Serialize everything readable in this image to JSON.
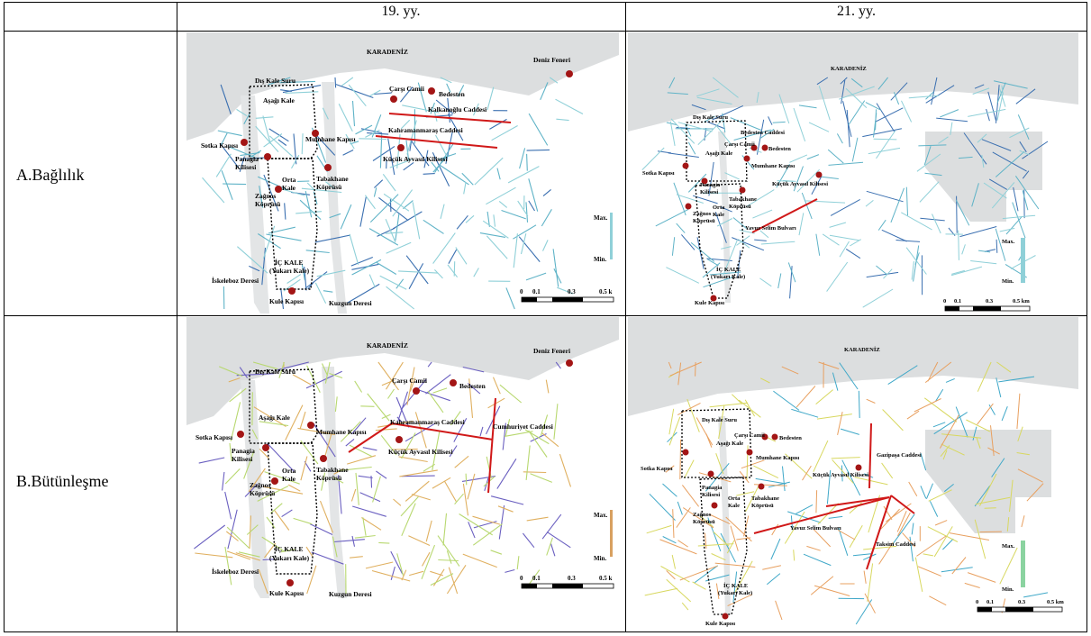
{
  "table": {
    "col_19": "19. yy.",
    "col_21": "21. yy.",
    "row_a": "A.Bağlılık",
    "row_b": "B.Bütünleşme"
  },
  "labels": {
    "karadeniz": "KARADENİZ",
    "deniz_feneri": "Deniz Feneri",
    "dis_kale_suru": "Dış Kale Suru",
    "carsi_camii": "Çarşı Camii",
    "bedesten": "Bedesten",
    "bedesten_caddesi": "Bedesten Caddesi",
    "kalkanoglu_caddesi": "Kalkanoğlu Caddesi",
    "kahramanmaras_caddesi": "Kahramanmaraş Caddesi",
    "cumhuriyet_caddesi": "Cumhuriyet Caddesi",
    "asagi_kale": "Aşağı Kale",
    "mumhane_kapisi": "Mumhane Kapısı",
    "sotka_kapisi": "Sotka Kapısı",
    "panagia_kilisesi_1": "Panagia",
    "panagia_kilisesi_2": "Kilisesi",
    "kucuk_ayvasil": "Küçük Ayvasıl Kilisesi",
    "tabakhane_1": "Tabakhane",
    "tabakhane_2": "Köprüsü",
    "orta_kale_1": "Orta",
    "orta_kale_2": "Kale",
    "zagnos_1": "Zağnos",
    "zagnos_2": "Köprüsü",
    "ic_kale_1": "İÇ KALE",
    "ic_kale_2": "(Yukarı Kale)",
    "iskeleboz_deresi": "İskeleboz Deresi",
    "kule_kapisi": "Kule Kapısı",
    "kuzgun_deresi": "Kuzgun Deresi",
    "yavuz_selim": "Yavuz Selim Bulvarı",
    "gazipasa_caddesi": "Gazipaşa Caddesi",
    "taksim_caddesi": "Taksim Caddesi"
  },
  "legend": {
    "max": "Max.",
    "min": "Min."
  },
  "scale": {
    "ticks": [
      "0",
      "0.1",
      "0.3",
      "0.5 k"
    ],
    "ticks_km": [
      "0",
      "0.1",
      "0.3",
      "0.5 km"
    ]
  },
  "colors": {
    "sea": "#dcdedf",
    "river": "#e3e5e6",
    "poi_dot": "#a31515",
    "axis_line": "#d01818",
    "connectivity_low": [
      "#3a6fb0",
      "#5fb3c7",
      "#8fd0d8",
      "#9ecc7a"
    ],
    "integration_full": [
      "#3b3bb0",
      "#3fa8c8",
      "#8bd3a0",
      "#d8d860",
      "#e8a060",
      "#e05040"
    ]
  }
}
